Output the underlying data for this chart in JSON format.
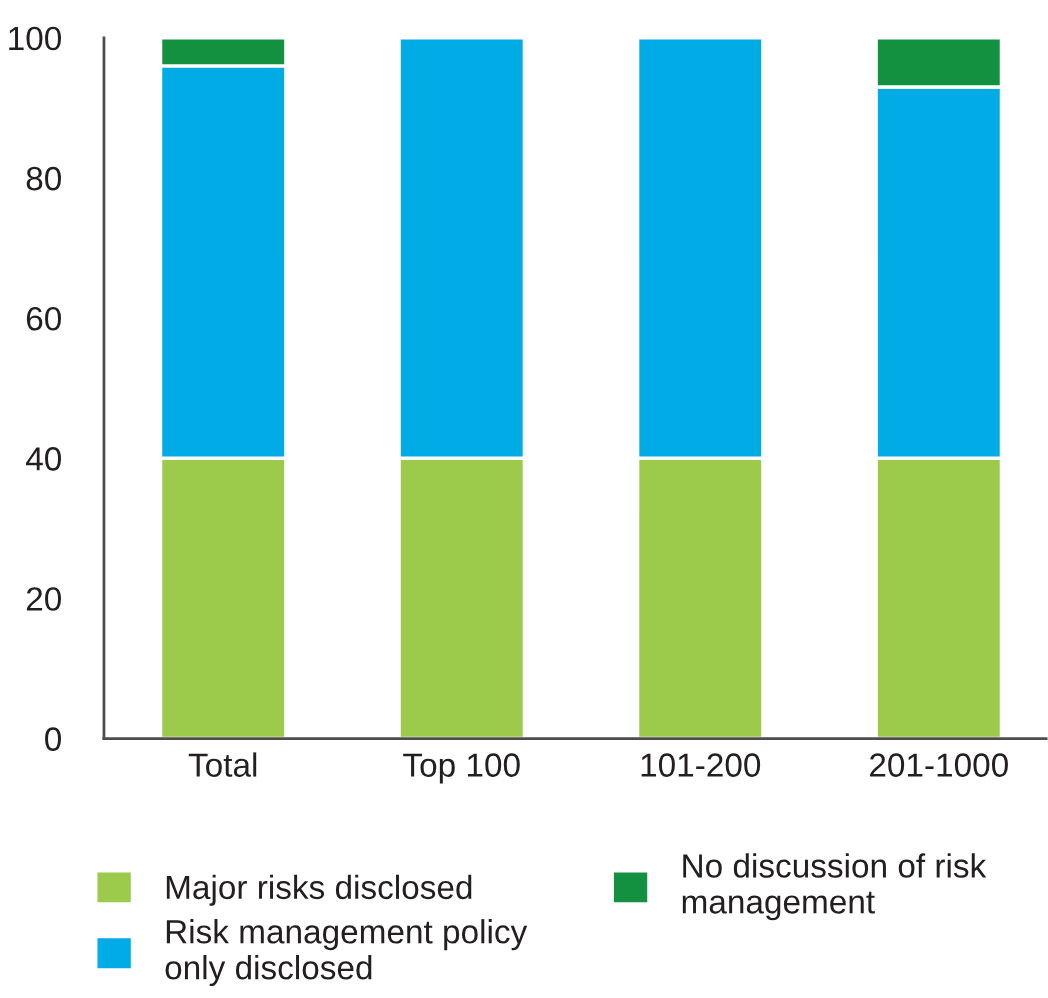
{
  "chart_data": {
    "type": "bar",
    "stacked": true,
    "categories": [
      "Total",
      "Top 100",
      "101-200",
      "201-1000"
    ],
    "series": [
      {
        "name": "Major risks disclosed",
        "color": "#9cca4a",
        "values": [
          40,
          40,
          40,
          40
        ]
      },
      {
        "name": "Risk management policy\nonly disclosed",
        "color": "#00abe6",
        "values": [
          56,
          60,
          60,
          53
        ]
      },
      {
        "name": "No discussion of risk\nmanagement",
        "color": "#139040",
        "values": [
          4,
          0,
          0,
          7
        ]
      }
    ],
    "ylim": [
      0,
      100
    ],
    "yticks": [
      0,
      20,
      40,
      60,
      80,
      100
    ],
    "grid": false,
    "legend": "bottom"
  }
}
